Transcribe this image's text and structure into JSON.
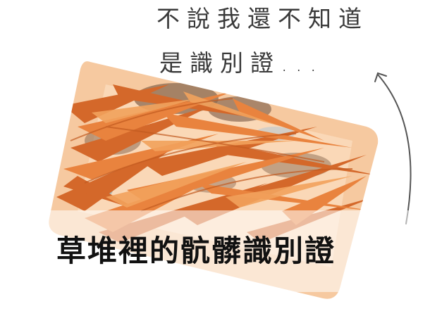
{
  "speech": {
    "line1": "不說我還不知道",
    "line2": "是識別證..."
  },
  "caption": "草堆裡的骯髒識別證",
  "colors": {
    "card_base": "#f6c9a0",
    "grass_dark": "#d4682a",
    "grass_mid": "#e9833e",
    "grass_light": "#f2a25c",
    "mud": "#8a6a52",
    "text": "#111111",
    "arrow": "#555555"
  },
  "icons": {
    "arrow": "curved-arrow-icon",
    "card": "id-card-illustration"
  }
}
